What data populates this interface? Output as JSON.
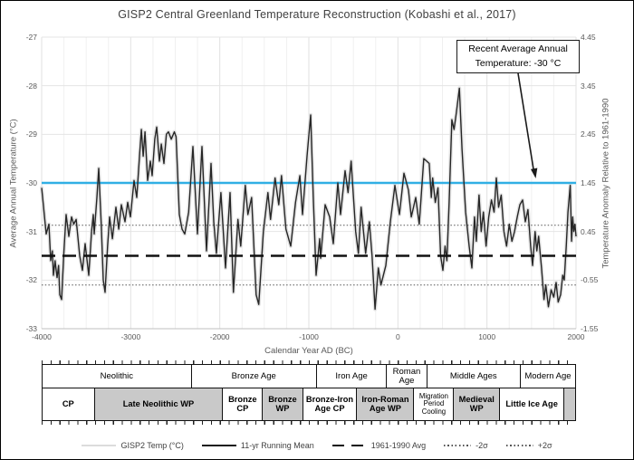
{
  "title": "GISP2 Central Greenland Temperature Reconstruction (Kobashi et al., 2017)",
  "annotation": {
    "line1": "Recent Average Annual",
    "line2": "Temperature: -30 °C"
  },
  "axes": {
    "left": {
      "title": "Average Annual Temperature (°C)",
      "ticks": [
        "-27",
        "-28",
        "-29",
        "-30",
        "-31",
        "-32",
        "-33"
      ]
    },
    "right": {
      "title": "Temperature Anomaly Relative to 1961-1990",
      "ticks": [
        "4.45",
        "3.45",
        "2.45",
        "1.45",
        "0.45",
        "-0.55",
        "-1.55"
      ]
    },
    "x": {
      "title": "Calendar Year AD (BC)",
      "ticks": [
        "-4000",
        "-3000",
        "-2000",
        "-1000",
        "0",
        "1000",
        "2000"
      ]
    }
  },
  "legend": [
    {
      "label": "GISP2 Temp (°C)",
      "style": "solid-light"
    },
    {
      "label": "11-yr Running Mean",
      "style": "solid-dark"
    },
    {
      "label": "1961-1990 Avg",
      "style": "dashed"
    },
    {
      "label": "-2σ",
      "style": "dotted"
    },
    {
      "label": "+2σ",
      "style": "dotted"
    }
  ],
  "epochs": {
    "row1": [
      {
        "label": "Neolithic",
        "width": 28.0
      },
      {
        "label": "Bronze Age",
        "width": 23.5
      },
      {
        "label": "Iron Age",
        "width": 13.2
      },
      {
        "label": "Roman Age",
        "width": 7.5
      },
      {
        "label": "Middle Ages",
        "width": 17.6
      },
      {
        "label": "Modern Age",
        "width": 10.2
      }
    ],
    "row2": [
      {
        "label": "CP",
        "width": 9.8,
        "shaded": false
      },
      {
        "label": "Late Neolithic WP",
        "width": 24.1,
        "shaded": true
      },
      {
        "label": "Bronze CP",
        "width": 7.5,
        "shaded": false
      },
      {
        "label": "Bronze WP",
        "width": 7.5,
        "shaded": true
      },
      {
        "label": "Bronze-Iron Age CP",
        "width": 10.2,
        "shaded": false
      },
      {
        "label": "Iron-Roman Age WP",
        "width": 10.7,
        "shaded": true
      },
      {
        "label": "Migration Period Cooling",
        "width": 7.5,
        "shaded": false
      },
      {
        "label": "Medieval WP",
        "width": 8.6,
        "shaded": true
      },
      {
        "label": "Little Ice Age",
        "width": 12.1,
        "shaded": false
      },
      {
        "label": "",
        "width": 2.0,
        "shaded": true
      }
    ]
  },
  "colors": {
    "running_mean": "#262626",
    "annual_halo": "#e3e3e3",
    "recent_avg_blue": "#31AFE4",
    "mean_dashed": "#111111",
    "sigma_dotted": "#555555",
    "grid_minor": "#f0f0f0",
    "grid_major": "#e2e2e2",
    "grid_horizontal": "#e4e4e4",
    "axis_line": "#bfbfbf",
    "epoch_shaded": "#c9c9c9"
  },
  "chart_data": {
    "type": "line",
    "title": "GISP2 Central Greenland Temperature Reconstruction (Kobashi et al., 2017)",
    "xlabel": "Calendar Year AD (BC)",
    "ylabel_left": "Average Annual Temperature (°C)",
    "ylabel_right": "Temperature Anomaly Relative to 1961-1990",
    "xlim": [
      -4000,
      2000
    ],
    "ylim_left": [
      -33,
      -27
    ],
    "ylim_right": [
      -1.55,
      4.45
    ],
    "x_tick_step": 1000,
    "x_grid_minor_step": 250,
    "grid": true,
    "legend_position": "bottom",
    "reference_lines": [
      {
        "name": "Recent Average Annual Temperature",
        "value": -30,
        "style": "solid",
        "color": "#31AFE4"
      },
      {
        "name": "1961-1990 Avg",
        "value": -31.5,
        "style": "dashed",
        "color": "#111111"
      },
      {
        "name": "+2σ",
        "value": -30.87,
        "style": "dotted",
        "color": "#555555"
      },
      {
        "name": "-2σ",
        "value": -32.1,
        "style": "dotted",
        "color": "#555555"
      }
    ],
    "series": [
      {
        "name": "11-yr Running Mean",
        "points": [
          [
            -4000,
            -30.1
          ],
          [
            -3949,
            -31.05
          ],
          [
            -3919,
            -30.85
          ],
          [
            -3898,
            -31.6
          ],
          [
            -3880,
            -31.4
          ],
          [
            -3868,
            -31.9
          ],
          [
            -3850,
            -31.6
          ],
          [
            -3827,
            -31.95
          ],
          [
            -3810,
            -31.7
          ],
          [
            -3797,
            -32.3
          ],
          [
            -3776,
            -32.4
          ],
          [
            -3750,
            -31.4
          ],
          [
            -3725,
            -30.65
          ],
          [
            -3695,
            -31.1
          ],
          [
            -3664,
            -30.7
          ],
          [
            -3640,
            -30.85
          ],
          [
            -3613,
            -30.75
          ],
          [
            -3573,
            -31.5
          ],
          [
            -3542,
            -31.8
          ],
          [
            -3512,
            -31.25
          ],
          [
            -3471,
            -31.9
          ],
          [
            -3440,
            -31.0
          ],
          [
            -3420,
            -30.65
          ],
          [
            -3410,
            -31.05
          ],
          [
            -3380,
            -30.3
          ],
          [
            -3359,
            -29.7
          ],
          [
            -3330,
            -30.9
          ],
          [
            -3308,
            -32.0
          ],
          [
            -3288,
            -32.25
          ],
          [
            -3260,
            -31.3
          ],
          [
            -3237,
            -30.7
          ],
          [
            -3206,
            -31.15
          ],
          [
            -3166,
            -30.5
          ],
          [
            -3135,
            -30.95
          ],
          [
            -3105,
            -30.45
          ],
          [
            -3064,
            -30.8
          ],
          [
            -3034,
            -30.4
          ],
          [
            -3003,
            -30.7
          ],
          [
            -2963,
            -29.95
          ],
          [
            -2932,
            -30.3
          ],
          [
            -2900,
            -29.4
          ],
          [
            -2880,
            -28.9
          ],
          [
            -2860,
            -29.45
          ],
          [
            -2840,
            -28.95
          ],
          [
            -2810,
            -29.95
          ],
          [
            -2780,
            -29.55
          ],
          [
            -2759,
            -29.85
          ],
          [
            -2730,
            -29.1
          ],
          [
            -2708,
            -28.85
          ],
          [
            -2678,
            -29.55
          ],
          [
            -2657,
            -29.2
          ],
          [
            -2627,
            -29.6
          ],
          [
            -2600,
            -29.0
          ],
          [
            -2576,
            -28.95
          ],
          [
            -2545,
            -29.1
          ],
          [
            -2510,
            -28.95
          ],
          [
            -2491,
            -29.05
          ],
          [
            -2454,
            -30.65
          ],
          [
            -2424,
            -30.95
          ],
          [
            -2393,
            -31.05
          ],
          [
            -2350,
            -30.6
          ],
          [
            -2302,
            -29.25
          ],
          [
            -2251,
            -31.05
          ],
          [
            -2200,
            -29.25
          ],
          [
            -2149,
            -31.4
          ],
          [
            -2098,
            -29.6
          ],
          [
            -2068,
            -30.8
          ],
          [
            -2038,
            -31.45
          ],
          [
            -1987,
            -30.2
          ],
          [
            -1936,
            -31.75
          ],
          [
            -1885,
            -30.2
          ],
          [
            -1847,
            -32.25
          ],
          [
            -1796,
            -30.75
          ],
          [
            -1765,
            -31.3
          ],
          [
            -1714,
            -30.05
          ],
          [
            -1684,
            -30.65
          ],
          [
            -1643,
            -30.3
          ],
          [
            -1592,
            -32.3
          ],
          [
            -1562,
            -32.5
          ],
          [
            -1511,
            -31.0
          ],
          [
            -1460,
            -30.2
          ],
          [
            -1430,
            -30.75
          ],
          [
            -1379,
            -29.9
          ],
          [
            -1338,
            -30.45
          ],
          [
            -1307,
            -29.85
          ],
          [
            -1257,
            -30.95
          ],
          [
            -1203,
            -31.3
          ],
          [
            -1150,
            -30.4
          ],
          [
            -1101,
            -29.85
          ],
          [
            -1071,
            -30.65
          ],
          [
            -1020,
            -29.45
          ],
          [
            -980,
            -28.6
          ],
          [
            -950,
            -30.3
          ],
          [
            -919,
            -31.9
          ],
          [
            -878,
            -31.15
          ],
          [
            -868,
            -31.55
          ],
          [
            -817,
            -30.45
          ],
          [
            -766,
            -30.7
          ],
          [
            -725,
            -31.25
          ],
          [
            -675,
            -30.0
          ],
          [
            -644,
            -30.65
          ],
          [
            -593,
            -29.75
          ],
          [
            -560,
            -30.2
          ],
          [
            -525,
            -29.55
          ],
          [
            -474,
            -31.0
          ],
          [
            -444,
            -31.45
          ],
          [
            -413,
            -30.5
          ],
          [
            -362,
            -31.45
          ],
          [
            -321,
            -30.8
          ],
          [
            -290,
            -31.5
          ],
          [
            -257,
            -32.6
          ],
          [
            -220,
            -31.75
          ],
          [
            -190,
            -32.1
          ],
          [
            -136,
            -31.7
          ],
          [
            -85,
            -30.8
          ],
          [
            -34,
            -30.05
          ],
          [
            17,
            -30.65
          ],
          [
            68,
            -29.8
          ],
          [
            119,
            -30.15
          ],
          [
            150,
            -30.7
          ],
          [
            200,
            -30.3
          ],
          [
            240,
            -30.85
          ],
          [
            291,
            -29.5
          ],
          [
            322,
            -29.55
          ],
          [
            352,
            -29.6
          ],
          [
            375,
            -30.3
          ],
          [
            390,
            -29.9
          ],
          [
            420,
            -30.4
          ],
          [
            450,
            -30.1
          ],
          [
            480,
            -31.5
          ],
          [
            505,
            -31.8
          ],
          [
            530,
            -31.3
          ],
          [
            550,
            -31.6
          ],
          [
            575,
            -30.4
          ],
          [
            606,
            -28.7
          ],
          [
            630,
            -28.9
          ],
          [
            657,
            -28.55
          ],
          [
            690,
            -28.05
          ],
          [
            720,
            -29.3
          ],
          [
            760,
            -30.6
          ],
          [
            800,
            -31.3
          ],
          [
            830,
            -31.75
          ],
          [
            860,
            -30.7
          ],
          [
            880,
            -31.2
          ],
          [
            911,
            -30.25
          ],
          [
            935,
            -31.0
          ],
          [
            960,
            -30.6
          ],
          [
            990,
            -31.3
          ],
          [
            1020,
            -30.7
          ],
          [
            1050,
            -30.35
          ],
          [
            1080,
            -30.6
          ],
          [
            1105,
            -29.9
          ],
          [
            1130,
            -30.5
          ],
          [
            1160,
            -30.25
          ],
          [
            1190,
            -31.0
          ],
          [
            1220,
            -31.3
          ],
          [
            1250,
            -30.85
          ],
          [
            1280,
            -31.2
          ],
          [
            1310,
            -31.0
          ],
          [
            1340,
            -30.7
          ],
          [
            1369,
            -30.45
          ],
          [
            1400,
            -30.35
          ],
          [
            1430,
            -30.8
          ],
          [
            1460,
            -30.55
          ],
          [
            1490,
            -31.3
          ],
          [
            1512,
            -31.7
          ],
          [
            1540,
            -31.0
          ],
          [
            1560,
            -31.4
          ],
          [
            1580,
            -31.1
          ],
          [
            1613,
            -31.75
          ],
          [
            1640,
            -32.4
          ],
          [
            1660,
            -32.1
          ],
          [
            1690,
            -32.55
          ],
          [
            1720,
            -32.2
          ],
          [
            1750,
            -32.35
          ],
          [
            1776,
            -32.05
          ],
          [
            1800,
            -32.45
          ],
          [
            1827,
            -32.3
          ],
          [
            1850,
            -31.9
          ],
          [
            1868,
            -32.0
          ],
          [
            1890,
            -31.3
          ],
          [
            1910,
            -30.6
          ],
          [
            1935,
            -30.05
          ],
          [
            1950,
            -31.2
          ],
          [
            1962,
            -30.7
          ],
          [
            1975,
            -31.0
          ],
          [
            1988,
            -30.85
          ],
          [
            2000,
            -31.1
          ]
        ]
      }
    ]
  }
}
